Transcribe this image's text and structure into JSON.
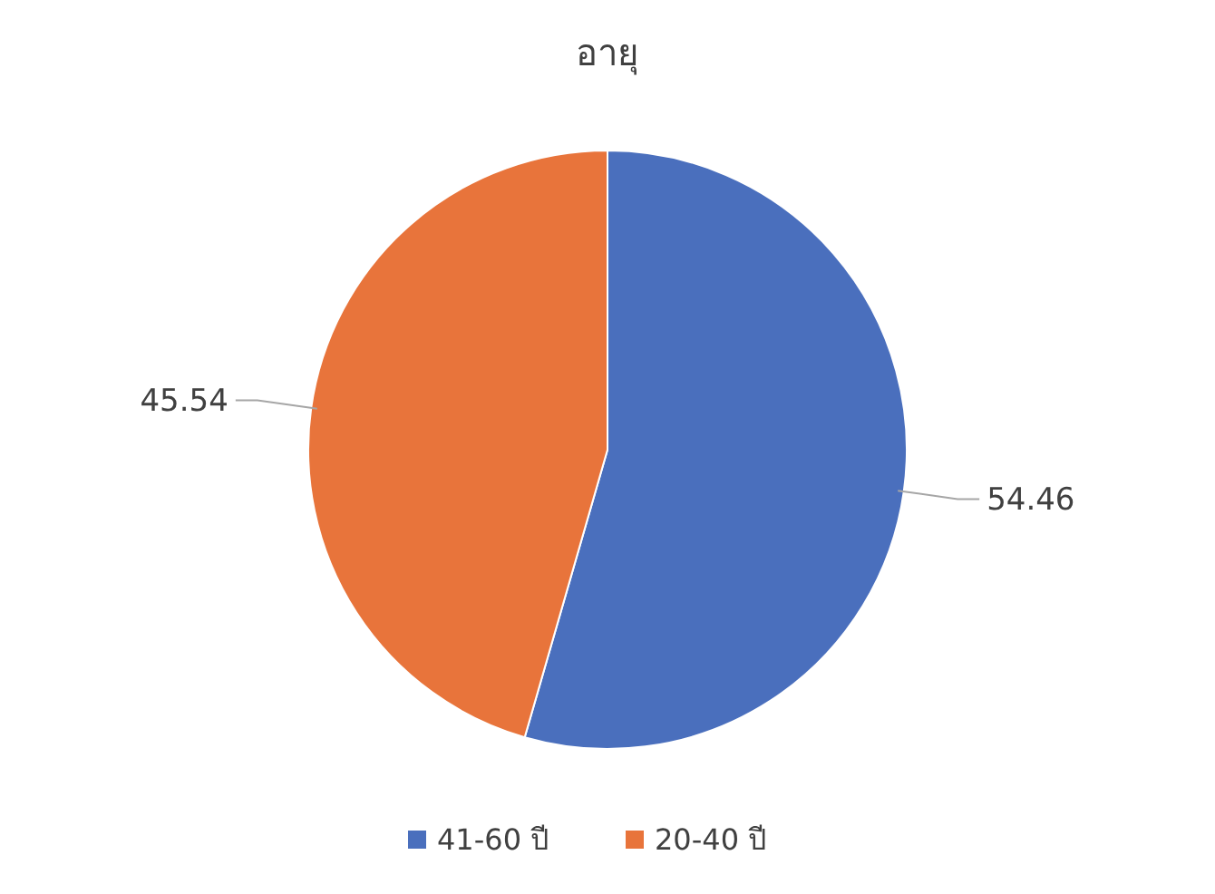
{
  "chart_data": {
    "type": "pie",
    "title": "อายุ",
    "categories": [
      "41-60 ปี",
      "20-40 ปี"
    ],
    "values": [
      54.46,
      45.54
    ],
    "colors": [
      "#4a6fbd",
      "#e8743b"
    ],
    "data_labels": true,
    "legend": "bottom"
  }
}
